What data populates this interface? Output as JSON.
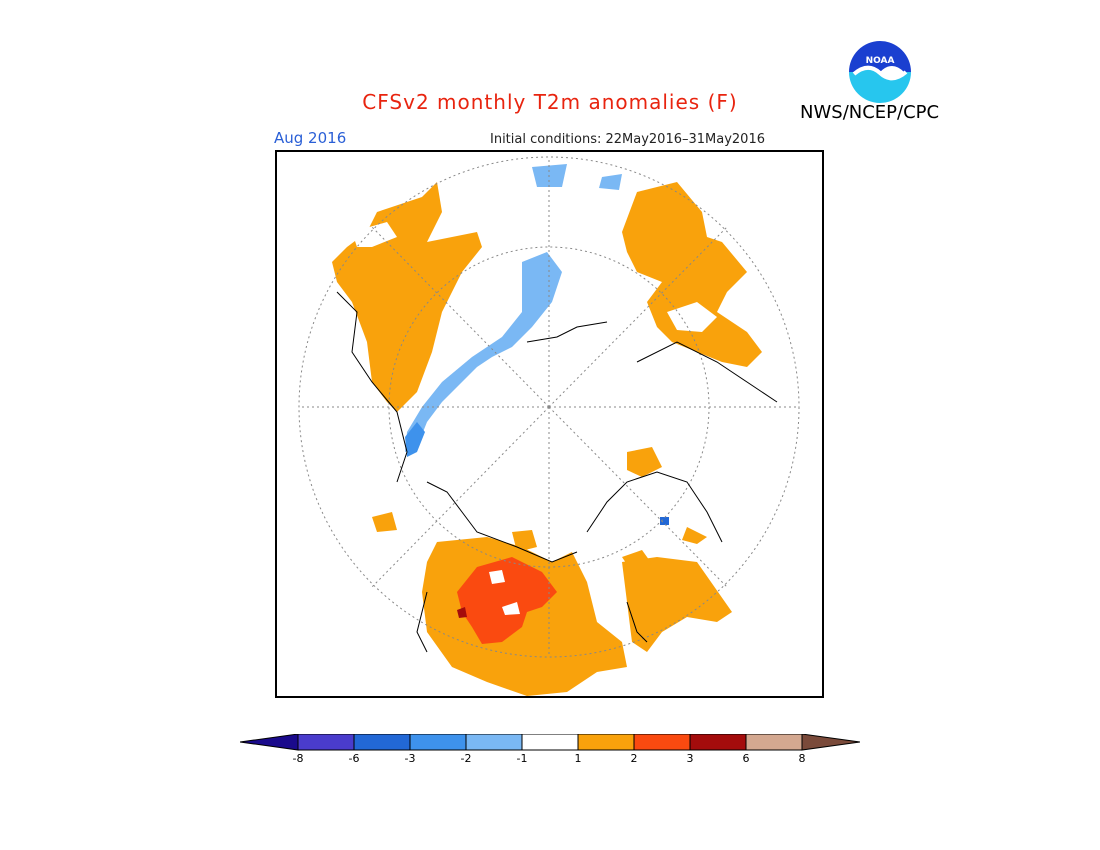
{
  "title": "CFSv2 monthly T2m anomalies (F)",
  "valid_month": "Aug 2016",
  "initial_conditions": "Initial conditions: 22May2016–31May2016",
  "agency": "NWS/NCEP/CPC",
  "logo": {
    "text": "NOAA",
    "icon": "noaa-logo-icon"
  },
  "legend": {
    "bins": [
      {
        "color": "#1a0a8c"
      },
      {
        "color": "#4a3ccc"
      },
      {
        "color": "#2268d6"
      },
      {
        "color": "#3e92ec"
      },
      {
        "color": "#7ab8f4"
      },
      {
        "color": "#ffffff"
      },
      {
        "color": "#f9a20c"
      },
      {
        "color": "#fa4a10"
      },
      {
        "color": "#a40c0c"
      },
      {
        "color": "#d4a890"
      },
      {
        "color": "#7a4a3a"
      }
    ],
    "ticks": [
      "-8",
      "-6",
      "-3",
      "-2",
      "-1",
      "1",
      "2",
      "3",
      "6",
      "8"
    ]
  },
  "colors": {
    "title": "#e8240f",
    "month": "#2a5fd6",
    "warm1": "#f9a20c",
    "warm2": "#fa4a10",
    "warm3": "#a40c0c",
    "cool1": "#7ab8f4",
    "cool2": "#3e92ec",
    "cool3": "#2268d6"
  }
}
